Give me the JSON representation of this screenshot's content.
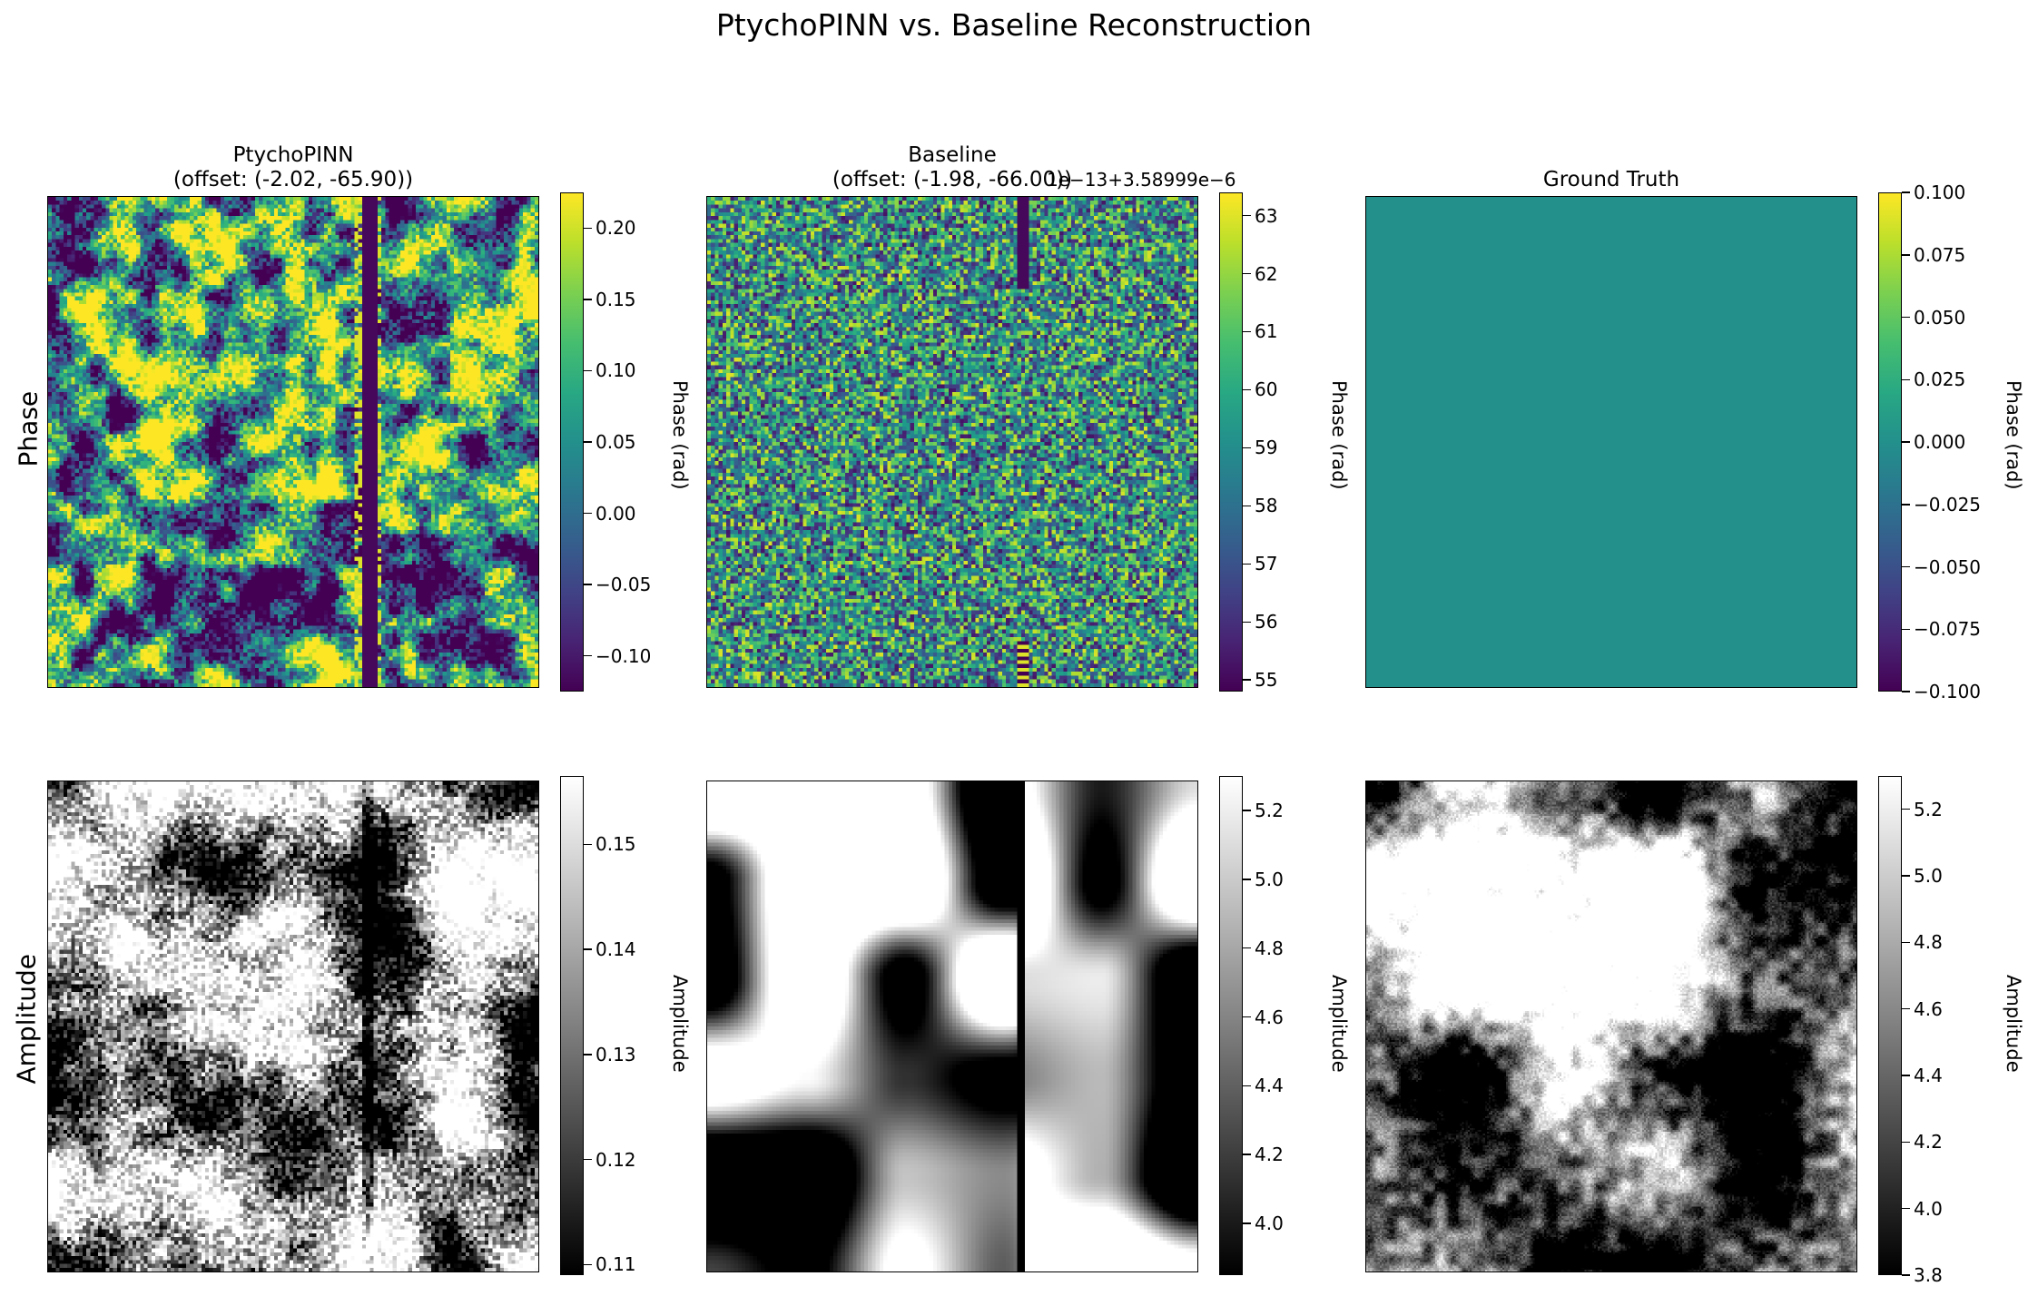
{
  "figure": {
    "title": "PtychoPINN vs. Baseline Reconstruction"
  },
  "row_labels": [
    "Phase",
    "Amplitude"
  ],
  "chart_data": [
    {
      "type": "heatmap",
      "row": "Phase",
      "title": "PtychoPINN\n(offset: (-2.02, -65.90))",
      "colormap": "viridis",
      "colorbar_label": "Phase (rad)",
      "clim": [
        -0.125,
        0.225
      ],
      "ticks": [
        -0.1,
        -0.05,
        0.0,
        0.05,
        0.1,
        0.15,
        0.2
      ],
      "tick_labels": [
        "−0.10",
        "−0.05",
        "0.00",
        "0.05",
        "0.10",
        "0.15",
        "0.20"
      ]
    },
    {
      "type": "heatmap",
      "row": "Phase",
      "title": "Baseline\n(offset: (-1.98, -66.00))",
      "colormap": "viridis",
      "colorbar_label": "Phase (rad)",
      "clim": [
        54.8,
        63.4
      ],
      "colorbar_offset_text": "1e−13+3.58999e−6",
      "ticks": [
        55,
        56,
        57,
        58,
        59,
        60,
        61,
        62,
        63
      ],
      "tick_labels": [
        "55",
        "56",
        "57",
        "58",
        "59",
        "60",
        "61",
        "62",
        "63"
      ]
    },
    {
      "type": "heatmap",
      "row": "Phase",
      "title": "Ground Truth",
      "colormap": "viridis",
      "colorbar_label": "Phase (rad)",
      "clim": [
        -0.1,
        0.1
      ],
      "ticks": [
        -0.1,
        -0.075,
        -0.05,
        -0.025,
        0.0,
        0.025,
        0.05,
        0.075,
        0.1
      ],
      "tick_labels": [
        "−0.100",
        "−0.075",
        "−0.050",
        "−0.025",
        "0.000",
        "0.025",
        "0.050",
        "0.075",
        "0.100"
      ]
    },
    {
      "type": "heatmap",
      "row": "Amplitude",
      "title": "",
      "colormap": "gray",
      "colorbar_label": "Amplitude",
      "clim": [
        0.109,
        0.1565
      ],
      "ticks": [
        0.11,
        0.12,
        0.13,
        0.14,
        0.15
      ],
      "tick_labels": [
        "0.11",
        "0.12",
        "0.13",
        "0.14",
        "0.15"
      ]
    },
    {
      "type": "heatmap",
      "row": "Amplitude",
      "title": "",
      "colormap": "gray",
      "colorbar_label": "Amplitude",
      "clim": [
        3.85,
        5.3
      ],
      "ticks": [
        4.0,
        4.2,
        4.4,
        4.6,
        4.8,
        5.0,
        5.2
      ],
      "tick_labels": [
        "4.0",
        "4.2",
        "4.4",
        "4.6",
        "4.8",
        "5.0",
        "5.2"
      ]
    },
    {
      "type": "heatmap",
      "row": "Amplitude",
      "title": "",
      "colormap": "gray",
      "colorbar_label": "Amplitude",
      "clim": [
        3.8,
        5.3
      ],
      "ticks": [
        3.8,
        4.0,
        4.2,
        4.4,
        4.6,
        4.8,
        5.0,
        5.2
      ],
      "tick_labels": [
        "3.8",
        "4.0",
        "4.2",
        "4.4",
        "4.6",
        "4.8",
        "5.0",
        "5.2"
      ]
    }
  ]
}
